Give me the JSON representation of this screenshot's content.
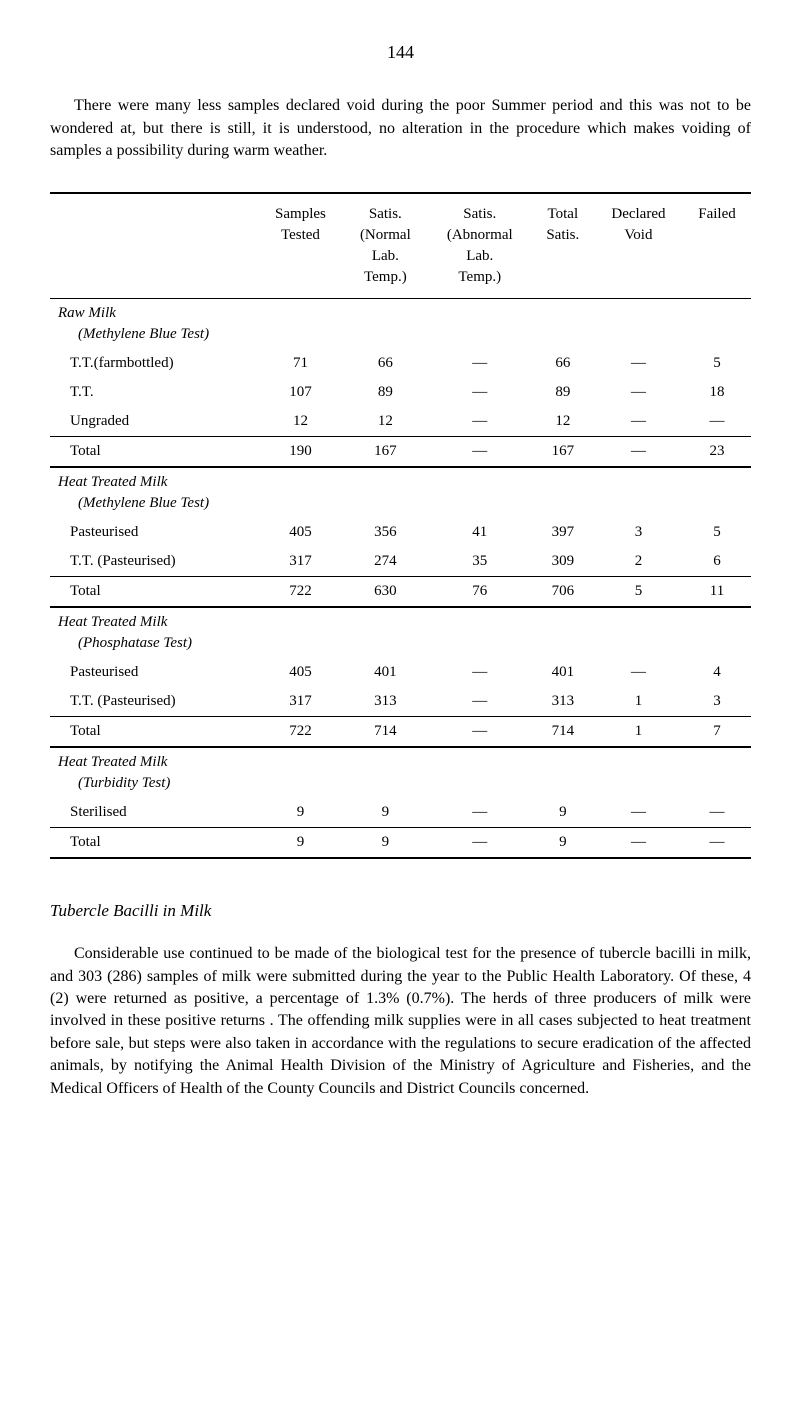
{
  "page_number": "144",
  "intro_text": "There were many less samples declared void during the poor Summer period and this was not to be wondered at, but there is still, it is under­stood, no alteration in the procedure which makes voiding of samples a possibility during warm weather.",
  "table": {
    "headers": {
      "samples_tested": "Samples\nTested",
      "satis_normal": "Satis.\n(Normal\nLab.\nTemp.)",
      "satis_abnormal": "Satis.\n(Abnormal\nLab.\nTemp.)",
      "total_satis": "Total\nSatis.",
      "declared_void": "Declared\nVoid",
      "failed": "Failed"
    },
    "sections": [
      {
        "title": "Raw Milk",
        "subtitle": "(Methylene Blue Test)",
        "rows": [
          {
            "label": "T.T.(farmbottled)",
            "cells": [
              "71",
              "66",
              "—",
              "66",
              "—",
              "5"
            ]
          },
          {
            "label": "T.T.",
            "cells": [
              "107",
              "89",
              "—",
              "89",
              "—",
              "18"
            ]
          },
          {
            "label": "Ungraded",
            "cells": [
              "12",
              "12",
              "—",
              "12",
              "—",
              "—"
            ]
          }
        ],
        "total": {
          "label": "Total",
          "cells": [
            "190",
            "167",
            "—",
            "167",
            "—",
            "23"
          ]
        }
      },
      {
        "title": "Heat Treated Milk",
        "subtitle": "(Methylene Blue Test)",
        "rows": [
          {
            "label": "Pasteurised",
            "cells": [
              "405",
              "356",
              "41",
              "397",
              "3",
              "5"
            ]
          },
          {
            "label": "T.T. (Pasteurised)",
            "cells": [
              "317",
              "274",
              "35",
              "309",
              "2",
              "6"
            ]
          }
        ],
        "total": {
          "label": "Total",
          "cells": [
            "722",
            "630",
            "76",
            "706",
            "5",
            "11"
          ]
        }
      },
      {
        "title": "Heat Treated Milk",
        "subtitle": "(Phosphatase Test)",
        "rows": [
          {
            "label": "Pasteurised",
            "cells": [
              "405",
              "401",
              "—",
              "401",
              "—",
              "4"
            ]
          },
          {
            "label": "T.T. (Pasteurised)",
            "cells": [
              "317",
              "313",
              "—",
              "313",
              "1",
              "3"
            ]
          }
        ],
        "total": {
          "label": "Total",
          "cells": [
            "722",
            "714",
            "—",
            "714",
            "1",
            "7"
          ]
        }
      },
      {
        "title": "Heat Treated Milk",
        "subtitle": "(Turbidity Test)",
        "rows": [
          {
            "label": "Sterilised",
            "cells": [
              "9",
              "9",
              "—",
              "9",
              "—",
              "—"
            ]
          }
        ],
        "total": {
          "label": "Total",
          "cells": [
            "9",
            "9",
            "—",
            "9",
            "—",
            "—"
          ]
        }
      }
    ]
  },
  "section2_title": "Tubercle Bacilli in Milk",
  "section2_text": "Considerable use continued to be made of the biological test for the presence of tubercle bacilli in milk, and 303 (286) samples of milk were submitted during the year to the Public Health Laboratory. Of these, 4 (2) were returned as positive, a percentage of 1.3% (0.7%). The herds of three producers of milk were involved in these positive returns . The offending milk supplies were in all cases subjected to heat treatment before sale, but steps were also taken in accordance with the regulations to secure eradication of the affected animals, by notifying the Animal Health Division of the Ministry of Agriculture and Fisheries, and the Medical Officers of Health of the County Councils and District Councils concerned."
}
